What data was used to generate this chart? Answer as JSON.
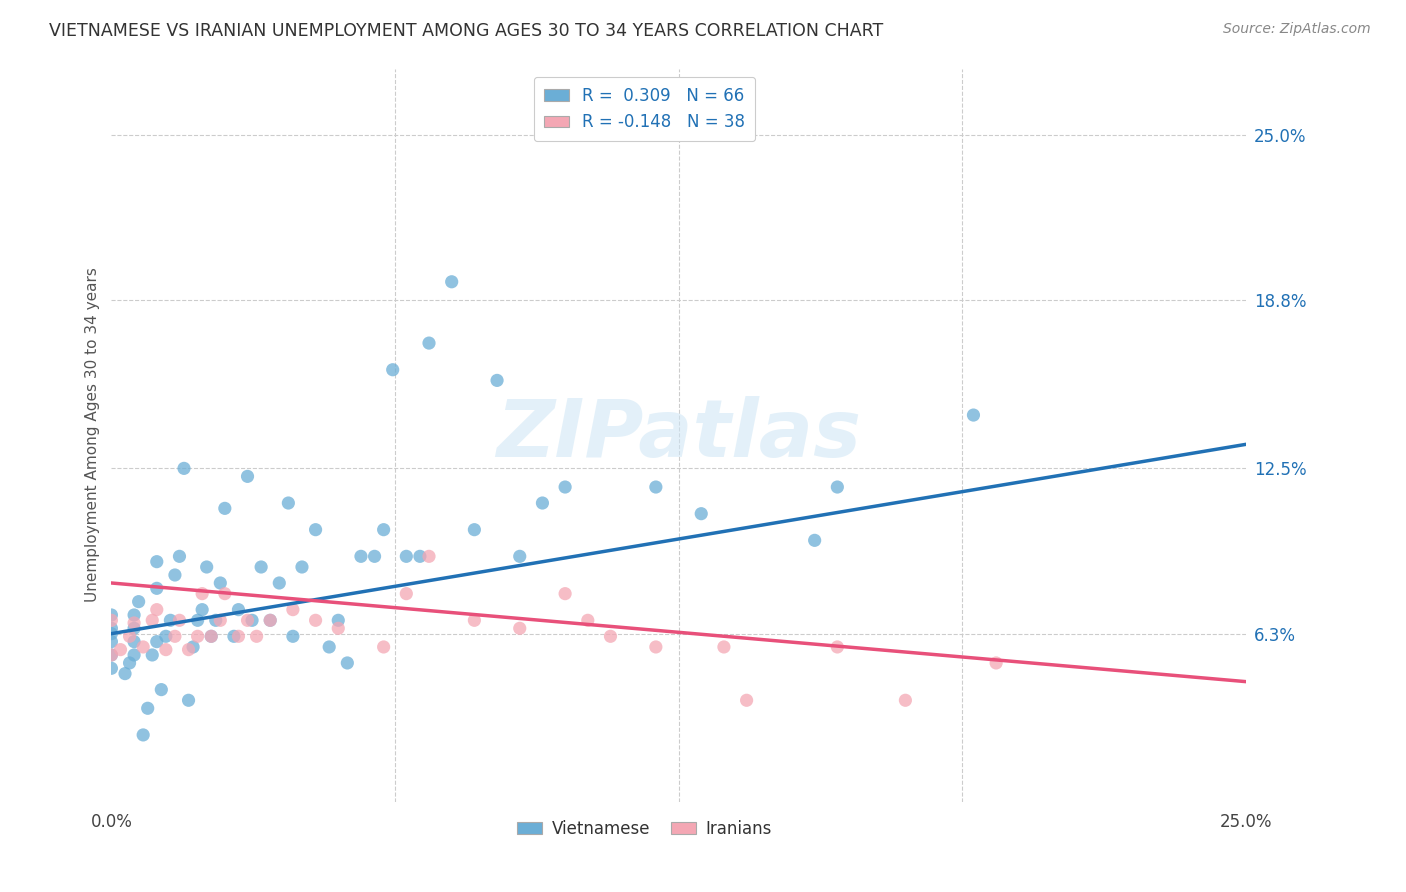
{
  "title": "VIETNAMESE VS IRANIAN UNEMPLOYMENT AMONG AGES 30 TO 34 YEARS CORRELATION CHART",
  "source": "Source: ZipAtlas.com",
  "ylabel": "Unemployment Among Ages 30 to 34 years",
  "ytick_labels": [
    "25.0%",
    "18.8%",
    "12.5%",
    "6.3%"
  ],
  "ytick_values": [
    0.25,
    0.188,
    0.125,
    0.063
  ],
  "xmin": 0.0,
  "xmax": 0.25,
  "ymin": 0.0,
  "ymax": 0.275,
  "blue_color": "#6baed6",
  "pink_color": "#f4a7b4",
  "blue_line_color": "#2171b5",
  "pink_line_color": "#e8507a",
  "watermark": "ZIPatlas",
  "viet_R": 0.309,
  "iran_R": -0.148,
  "viet_N": 66,
  "iran_N": 38,
  "blue_line_x0": 0.0,
  "blue_line_y0": 0.063,
  "blue_line_x1": 0.25,
  "blue_line_y1": 0.134,
  "pink_line_x0": 0.0,
  "pink_line_y0": 0.082,
  "pink_line_x1": 0.25,
  "pink_line_y1": 0.045,
  "vietnamese_x": [
    0.0,
    0.0,
    0.0,
    0.0,
    0.0,
    0.0,
    0.003,
    0.004,
    0.005,
    0.005,
    0.005,
    0.005,
    0.006,
    0.007,
    0.008,
    0.009,
    0.01,
    0.01,
    0.01,
    0.011,
    0.012,
    0.013,
    0.014,
    0.015,
    0.016,
    0.017,
    0.018,
    0.019,
    0.02,
    0.021,
    0.022,
    0.023,
    0.024,
    0.025,
    0.027,
    0.028,
    0.03,
    0.031,
    0.033,
    0.035,
    0.037,
    0.039,
    0.04,
    0.042,
    0.045,
    0.048,
    0.05,
    0.052,
    0.055,
    0.058,
    0.06,
    0.062,
    0.065,
    0.068,
    0.07,
    0.075,
    0.08,
    0.085,
    0.09,
    0.095,
    0.1,
    0.12,
    0.13,
    0.155,
    0.16,
    0.19
  ],
  "vietnamese_y": [
    0.05,
    0.055,
    0.06,
    0.063,
    0.065,
    0.07,
    0.048,
    0.052,
    0.055,
    0.06,
    0.065,
    0.07,
    0.075,
    0.025,
    0.035,
    0.055,
    0.06,
    0.08,
    0.09,
    0.042,
    0.062,
    0.068,
    0.085,
    0.092,
    0.125,
    0.038,
    0.058,
    0.068,
    0.072,
    0.088,
    0.062,
    0.068,
    0.082,
    0.11,
    0.062,
    0.072,
    0.122,
    0.068,
    0.088,
    0.068,
    0.082,
    0.112,
    0.062,
    0.088,
    0.102,
    0.058,
    0.068,
    0.052,
    0.092,
    0.092,
    0.102,
    0.162,
    0.092,
    0.092,
    0.172,
    0.195,
    0.102,
    0.158,
    0.092,
    0.112,
    0.118,
    0.118,
    0.108,
    0.098,
    0.118,
    0.145
  ],
  "iranians_x": [
    0.0,
    0.0,
    0.002,
    0.004,
    0.005,
    0.007,
    0.009,
    0.01,
    0.012,
    0.014,
    0.015,
    0.017,
    0.019,
    0.02,
    0.022,
    0.024,
    0.025,
    0.028,
    0.03,
    0.032,
    0.035,
    0.04,
    0.045,
    0.05,
    0.06,
    0.065,
    0.07,
    0.08,
    0.09,
    0.1,
    0.105,
    0.11,
    0.12,
    0.135,
    0.14,
    0.16,
    0.175,
    0.195
  ],
  "iranians_y": [
    0.055,
    0.068,
    0.057,
    0.062,
    0.067,
    0.058,
    0.068,
    0.072,
    0.057,
    0.062,
    0.068,
    0.057,
    0.062,
    0.078,
    0.062,
    0.068,
    0.078,
    0.062,
    0.068,
    0.062,
    0.068,
    0.072,
    0.068,
    0.065,
    0.058,
    0.078,
    0.092,
    0.068,
    0.065,
    0.078,
    0.068,
    0.062,
    0.058,
    0.058,
    0.038,
    0.058,
    0.038,
    0.052
  ]
}
